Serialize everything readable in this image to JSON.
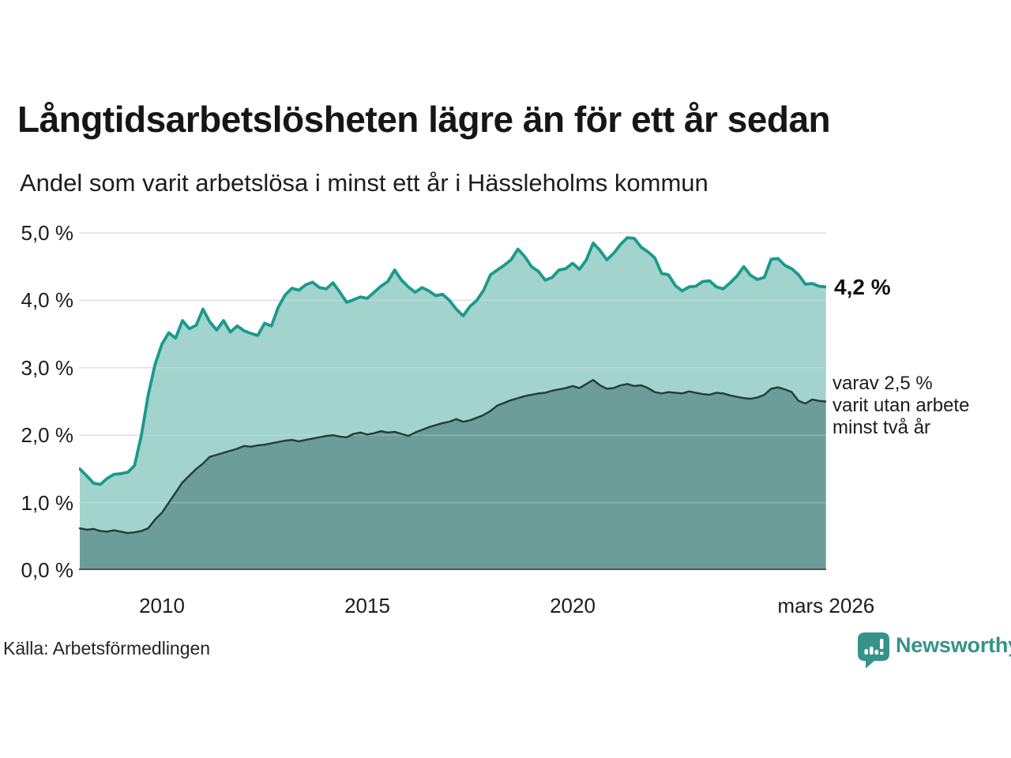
{
  "header": {
    "title": "Långtidsarbetslösheten lägre än för ett år sedan",
    "subtitle": "Andel som varit arbetslösa i minst ett år i Hässleholms kommun"
  },
  "annotations": {
    "end_value": "4,2 %",
    "secondary": "varav 2,5 %\nvarit utan arbete\nminst två år"
  },
  "footer": {
    "source": "Källa: Arbetsförmedlingen",
    "logo_text": "Newsworthy"
  },
  "colors": {
    "line_total": "#1a9a8c",
    "fill_total": "#a2d3cc",
    "line_two_years": "#1f3d3a",
    "fill_two_years": "#6c9d98",
    "grid": "#d8d8d8",
    "baseline": "#555555",
    "logo_teal": "#35938a"
  },
  "chart_data": {
    "type": "area",
    "title": "Långtidsarbetslösheten lägre än för ett år sedan",
    "subtitle": "Andel som varit arbetslösa i minst ett år i Hässleholms kommun",
    "x_start_year": 2008.0,
    "x_step_years": 0.1667,
    "x_end_label": "mars 2026",
    "ylim": [
      0,
      5
    ],
    "grid": "horizontal",
    "y_ticks": [
      5,
      4,
      3,
      2,
      1,
      0
    ],
    "y_tick_labels": [
      "5,0 %",
      "4,0 %",
      "3,0 %",
      "2,0 %",
      "1,0 %",
      "0,0 %"
    ],
    "x_tick_years": [
      2010,
      2015,
      2020,
      2026.17
    ],
    "x_tick_labels": [
      "2010",
      "2015",
      "2020",
      "mars 2026"
    ],
    "series": [
      {
        "name": "Andel som varit arbetslösa i minst ett år",
        "end_value_pct": 4.2,
        "end_label": "4,2 %",
        "color": "#1a9a8c",
        "fill": "#a2d3cc",
        "values": [
          1.5,
          1.4,
          1.29,
          1.27,
          1.36,
          1.42,
          1.43,
          1.45,
          1.55,
          2.0,
          2.6,
          3.05,
          3.35,
          3.52,
          3.44,
          3.7,
          3.58,
          3.63,
          3.87,
          3.68,
          3.56,
          3.7,
          3.53,
          3.62,
          3.55,
          3.51,
          3.48,
          3.66,
          3.62,
          3.9,
          4.08,
          4.18,
          4.15,
          4.23,
          4.27,
          4.19,
          4.17,
          4.26,
          4.12,
          3.97,
          4.01,
          4.05,
          4.03,
          4.12,
          4.21,
          4.28,
          4.45,
          4.3,
          4.2,
          4.12,
          4.19,
          4.14,
          4.07,
          4.09,
          4.0,
          3.87,
          3.77,
          3.91,
          4.0,
          4.15,
          4.38,
          4.45,
          4.52,
          4.6,
          4.76,
          4.65,
          4.5,
          4.43,
          4.3,
          4.34,
          4.45,
          4.47,
          4.55,
          4.46,
          4.6,
          4.85,
          4.74,
          4.6,
          4.7,
          4.83,
          4.93,
          4.92,
          4.79,
          4.72,
          4.63,
          4.4,
          4.38,
          4.22,
          4.14,
          4.2,
          4.21,
          4.28,
          4.29,
          4.2,
          4.17,
          4.26,
          4.36,
          4.5,
          4.37,
          4.31,
          4.34,
          4.61,
          4.62,
          4.52,
          4.47,
          4.38,
          4.24,
          4.25,
          4.21,
          4.2
        ]
      },
      {
        "name": "varav utan arbete minst två år",
        "end_value_pct": 2.5,
        "end_label": "varav 2,5 % varit utan arbete minst två år",
        "color": "#1f3d3a",
        "fill": "#6c9d98",
        "values": [
          0.62,
          0.6,
          0.61,
          0.58,
          0.57,
          0.59,
          0.57,
          0.55,
          0.56,
          0.58,
          0.62,
          0.75,
          0.85,
          1.0,
          1.15,
          1.3,
          1.4,
          1.5,
          1.58,
          1.68,
          1.71,
          1.74,
          1.77,
          1.8,
          1.84,
          1.83,
          1.85,
          1.86,
          1.88,
          1.9,
          1.92,
          1.93,
          1.91,
          1.93,
          1.95,
          1.97,
          1.99,
          2.0,
          1.98,
          1.97,
          2.02,
          2.04,
          2.01,
          2.03,
          2.06,
          2.04,
          2.05,
          2.02,
          1.99,
          2.04,
          2.08,
          2.12,
          2.15,
          2.18,
          2.2,
          2.24,
          2.2,
          2.22,
          2.26,
          2.3,
          2.36,
          2.44,
          2.48,
          2.52,
          2.55,
          2.58,
          2.6,
          2.62,
          2.63,
          2.66,
          2.68,
          2.7,
          2.73,
          2.7,
          2.76,
          2.82,
          2.74,
          2.69,
          2.7,
          2.74,
          2.76,
          2.73,
          2.74,
          2.7,
          2.64,
          2.62,
          2.64,
          2.63,
          2.62,
          2.65,
          2.63,
          2.61,
          2.6,
          2.63,
          2.62,
          2.59,
          2.57,
          2.55,
          2.54,
          2.56,
          2.6,
          2.69,
          2.71,
          2.68,
          2.64,
          2.51,
          2.47,
          2.53,
          2.51,
          2.5
        ]
      }
    ]
  }
}
